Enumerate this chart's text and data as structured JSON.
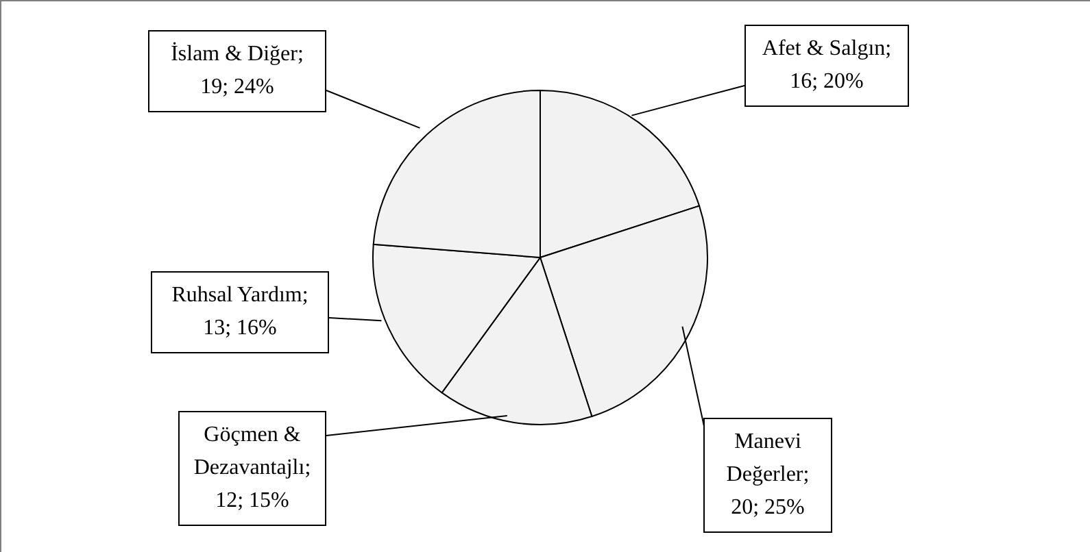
{
  "chart_data": {
    "type": "pie",
    "categories": [
      "Afet & Salgın",
      "Manevi Değerler",
      "Göçmen & Dezavantajlı",
      "Ruhsal Yardım",
      "İslam & Diğer"
    ],
    "values": [
      16,
      20,
      12,
      13,
      19
    ],
    "colors": [
      "#f2f2f2",
      "#f2f2f2",
      "#f2f2f2",
      "#f2f2f2",
      "#f2f2f2"
    ],
    "value_labels": [
      "; 16; 20%",
      "; 20; 25%",
      "; 12; 15%",
      "; 13; 16%",
      "; 19; 24%"
    ]
  }
}
